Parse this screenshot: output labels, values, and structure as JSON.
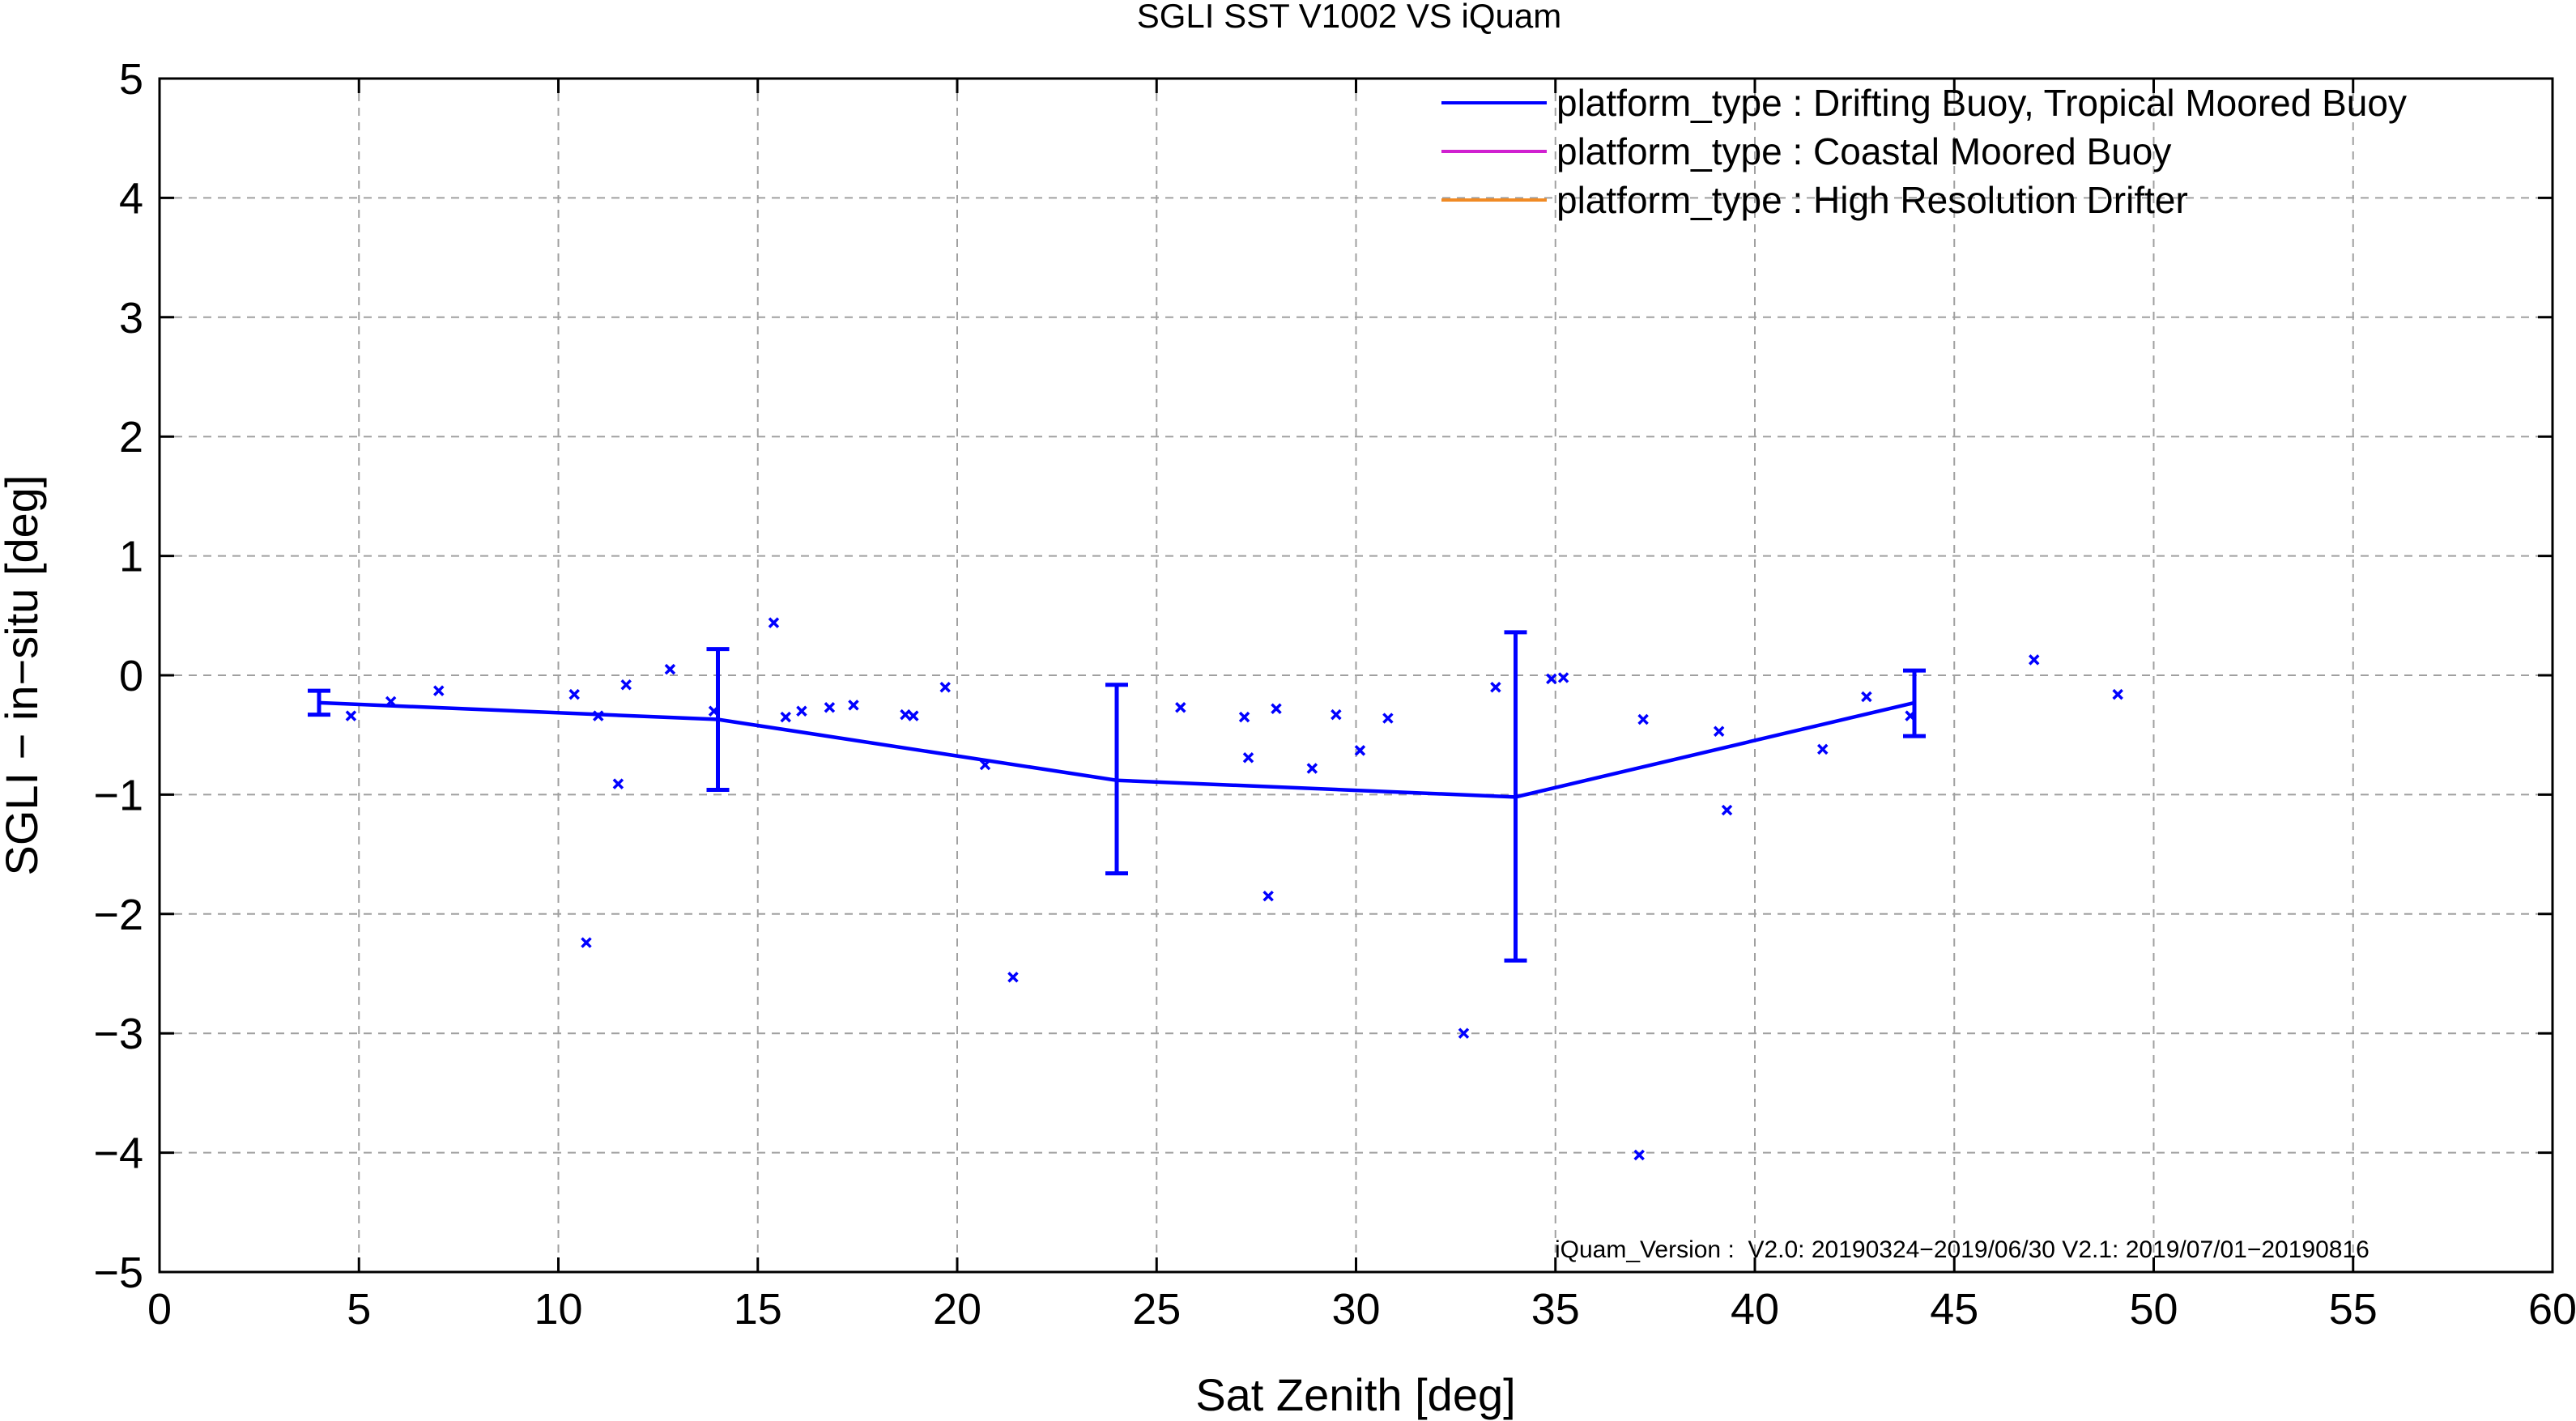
{
  "chart_data": {
    "type": "line",
    "title": "SGLI SST V1002 VS iQuam",
    "xlabel": "Sat Zenith [deg]",
    "ylabel": "SGLI − in−situ [deg]",
    "xlim": [
      0,
      60
    ],
    "ylim": [
      -5,
      5
    ],
    "xticks": [
      0,
      5,
      10,
      15,
      20,
      25,
      30,
      35,
      40,
      45,
      50,
      55,
      60
    ],
    "yticks": [
      -5,
      -4,
      -3,
      -2,
      -1,
      0,
      1,
      2,
      3,
      4,
      5
    ],
    "xtick_labels": [
      "0",
      "5",
      "10",
      "15",
      "20",
      "25",
      "30",
      "35",
      "40",
      "45",
      "50",
      "55",
      "60"
    ],
    "ytick_labels": [
      "−5",
      "−4",
      "−3",
      "−2",
      "−1",
      "0",
      "1",
      "2",
      "3",
      "4",
      "5"
    ],
    "grid": true,
    "legend_position": "top-right",
    "series": [
      {
        "name": "platform_type : Drifting Buoy, Tropical Moored Buoy",
        "color": "#0000ff",
        "mean_line": {
          "x": [
            4,
            14,
            24,
            34,
            44
          ],
          "y": [
            -0.23,
            -0.37,
            -0.88,
            -1.02,
            -0.23
          ],
          "err_low": [
            -0.33,
            -0.96,
            -1.66,
            -2.39,
            -0.51
          ],
          "err_high": [
            -0.13,
            0.22,
            -0.08,
            0.36,
            0.04
          ]
        },
        "points": [
          [
            4.8,
            -0.34
          ],
          [
            5.8,
            -0.22
          ],
          [
            7.0,
            -0.13
          ],
          [
            10.4,
            -0.16
          ],
          [
            10.7,
            -2.24
          ],
          [
            11.0,
            -0.34
          ],
          [
            11.5,
            -0.91
          ],
          [
            11.7,
            -0.08
          ],
          [
            12.8,
            0.05
          ],
          [
            13.9,
            -0.3
          ],
          [
            15.4,
            0.44
          ],
          [
            15.7,
            -0.35
          ],
          [
            16.1,
            -0.3
          ],
          [
            16.8,
            -0.27
          ],
          [
            17.4,
            -0.25
          ],
          [
            18.7,
            -0.33
          ],
          [
            18.9,
            -0.34
          ],
          [
            19.7,
            -0.1
          ],
          [
            20.7,
            -0.75
          ],
          [
            21.4,
            -2.53
          ],
          [
            25.6,
            -0.27
          ],
          [
            27.2,
            -0.35
          ],
          [
            27.3,
            -0.69
          ],
          [
            27.8,
            -1.85
          ],
          [
            28.0,
            -0.28
          ],
          [
            28.9,
            -0.78
          ],
          [
            29.5,
            -0.33
          ],
          [
            30.1,
            -0.63
          ],
          [
            30.8,
            -0.36
          ],
          [
            32.7,
            -3.0
          ],
          [
            33.5,
            -0.1
          ],
          [
            34.9,
            -0.03
          ],
          [
            35.2,
            -0.02
          ],
          [
            37.1,
            -4.02
          ],
          [
            37.2,
            -0.37
          ],
          [
            39.1,
            -0.47
          ],
          [
            39.3,
            -1.13
          ],
          [
            41.7,
            -0.62
          ],
          [
            42.8,
            -0.18
          ],
          [
            43.9,
            -0.34
          ],
          [
            47.0,
            0.13
          ],
          [
            49.1,
            -0.16
          ]
        ]
      },
      {
        "name": "platform_type : Coastal Moored Buoy",
        "color": "#d020d0",
        "points": []
      },
      {
        "name": "platform_type : High Resolution Drifter",
        "color": "#f08a24",
        "points": []
      }
    ],
    "annotation": "iQuam_Version :  V2.0: 20190324−2019/06/30 V2.1: 2019/07/01−20190816"
  }
}
